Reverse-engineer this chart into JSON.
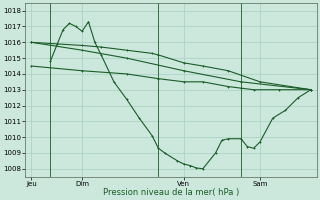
{
  "background_color": "#cce8dc",
  "grid_color": "#a8d0c0",
  "line_color": "#1a5c28",
  "xlabel": "Pression niveau de la mer( hPa )",
  "ylim": [
    1007.5,
    1018.5
  ],
  "yticks": [
    1008,
    1009,
    1010,
    1011,
    1012,
    1013,
    1014,
    1015,
    1016,
    1017,
    1018
  ],
  "xtick_labels": [
    "Jeu",
    "Dim",
    "Ven",
    "Sam"
  ],
  "xtick_positions": [
    0.5,
    4.5,
    12.5,
    18.5
  ],
  "vlines_x": [
    2.0,
    10.5,
    17.0
  ],
  "xlim": [
    0,
    23
  ],
  "lines": [
    {
      "x": [
        0.5,
        2.5,
        4.5,
        6.0,
        8.0,
        10.0,
        10.5,
        12.5,
        14.0,
        16.0,
        18.5,
        22.5
      ],
      "y": [
        1016.0,
        1015.9,
        1015.8,
        1015.7,
        1015.5,
        1015.3,
        1015.2,
        1014.7,
        1014.5,
        1014.2,
        1013.5,
        1013.0
      ]
    },
    {
      "x": [
        0.5,
        4.5,
        8.0,
        12.5,
        17.0,
        22.5
      ],
      "y": [
        1016.0,
        1015.5,
        1015.0,
        1014.2,
        1013.5,
        1013.0
      ]
    },
    {
      "x": [
        2.0,
        3.0,
        3.5,
        4.0,
        4.5,
        5.0,
        5.5,
        6.0,
        7.0,
        8.0,
        9.0,
        10.0,
        10.5,
        11.0,
        12.0,
        12.5,
        13.0,
        13.5,
        14.0,
        15.0,
        15.5,
        16.0,
        17.0,
        17.5,
        18.0,
        18.5,
        19.5,
        20.5,
        21.5,
        22.5
      ],
      "y": [
        1014.8,
        1016.8,
        1017.2,
        1017.0,
        1016.7,
        1017.3,
        1016.0,
        1015.2,
        1013.5,
        1012.4,
        1011.2,
        1010.1,
        1009.3,
        1009.0,
        1008.5,
        1008.3,
        1008.2,
        1008.05,
        1008.0,
        1009.0,
        1009.8,
        1009.9,
        1009.9,
        1009.4,
        1009.3,
        1009.7,
        1011.2,
        1011.7,
        1012.5,
        1013.0
      ]
    },
    {
      "x": [
        0.5,
        4.5,
        8.0,
        10.5,
        12.5,
        14.0,
        16.0,
        17.0,
        18.0,
        20.0,
        22.5
      ],
      "y": [
        1014.5,
        1014.2,
        1014.0,
        1013.7,
        1013.5,
        1013.5,
        1013.2,
        1013.1,
        1013.0,
        1013.0,
        1013.0
      ]
    }
  ],
  "figsize": [
    3.2,
    2.0
  ],
  "dpi": 100
}
